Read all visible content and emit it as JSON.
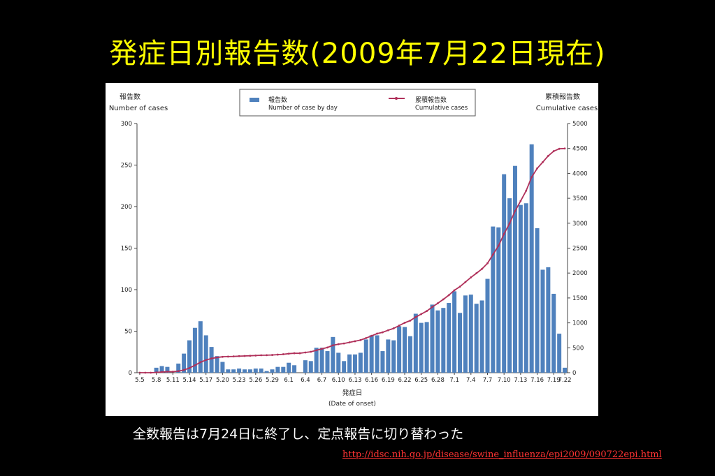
{
  "slide": {
    "title": "発症日別報告数(2009年7月22日現在)",
    "caption": "全数報告は7月24日に終了し、定点報告に切り替わった",
    "source_url": "http://idsc.nih.go.jp/disease/swine_influenza/epi2009/090722epi.html"
  },
  "colors": {
    "background": "#000000",
    "title": "#ffff00",
    "bar": "#4f81bd",
    "line": "#b0305a",
    "link": "#ff3333"
  },
  "chart_data": {
    "type": "bar",
    "left_axis_label_ja": "報告数",
    "left_axis_label_en": "Number of cases",
    "right_axis_label_ja": "累積報告数",
    "right_axis_label_en": "Cumulative cases",
    "xlabel_ja": "発症日",
    "xlabel_en": "(Date of onset)",
    "legend_position": "top-center",
    "grid": false,
    "ylim": [
      0,
      300
    ],
    "yticks": [
      0,
      50,
      100,
      150,
      200,
      250,
      300
    ],
    "y2lim": [
      0,
      5000
    ],
    "y2ticks": [
      0,
      500,
      1000,
      1500,
      2000,
      2500,
      3000,
      3500,
      4000,
      4500,
      5000
    ],
    "xtick_labels": [
      "5.5",
      "5.8",
      "5.11",
      "5.14",
      "5.17",
      "5.20",
      "5.23",
      "5.26",
      "5.29",
      "6.1",
      "6.4",
      "6.7",
      "6.10",
      "6.13",
      "6.16",
      "6.19",
      "6.22",
      "6.25",
      "6.28",
      "7.1",
      "7.4",
      "7.7",
      "7.10",
      "7.13",
      "7.16",
      "7.19",
      "7.22"
    ],
    "series": [
      {
        "name": "報告数",
        "name_en": "Number of case by day",
        "type": "bar",
        "axis": "left",
        "values": [
          0,
          0,
          0,
          6,
          8,
          7,
          0,
          11,
          23,
          39,
          54,
          62,
          45,
          31,
          20,
          13,
          4,
          4,
          5,
          4,
          4,
          5,
          5,
          2,
          4,
          7,
          7,
          12,
          9,
          0,
          15,
          14,
          30,
          30,
          26,
          43,
          24,
          14,
          22,
          22,
          24,
          40,
          45,
          45,
          26,
          40,
          39,
          56,
          55,
          44,
          71,
          60,
          61,
          82,
          75,
          78,
          84,
          98,
          72,
          93,
          94,
          83,
          87,
          113,
          176,
          175,
          239,
          210,
          249,
          202,
          204,
          275,
          174,
          124,
          127,
          95,
          47,
          6
        ]
      },
      {
        "name": "累積報告数",
        "name_en": "Cumulative cases",
        "type": "line",
        "axis": "right",
        "values": [
          0,
          0,
          0,
          6,
          14,
          21,
          21,
          32,
          55,
          94,
          148,
          210,
          255,
          286,
          306,
          319,
          323,
          327,
          332,
          336,
          340,
          345,
          350,
          352,
          356,
          363,
          370,
          382,
          391,
          391,
          406,
          420,
          450,
          480,
          506,
          549,
          573,
          587,
          609,
          631,
          655,
          695,
          740,
          785,
          811,
          851,
          890,
          946,
          1001,
          1045,
          1116,
          1176,
          1237,
          1319,
          1394,
          1472,
          1556,
          1654,
          1726,
          1819,
          1913,
          1996,
          2083,
          2196,
          2372,
          2547,
          2786,
          2996,
          3245,
          3447,
          3651,
          3926,
          4100,
          4224,
          4351,
          4446,
          4493,
          4499
        ]
      }
    ]
  }
}
